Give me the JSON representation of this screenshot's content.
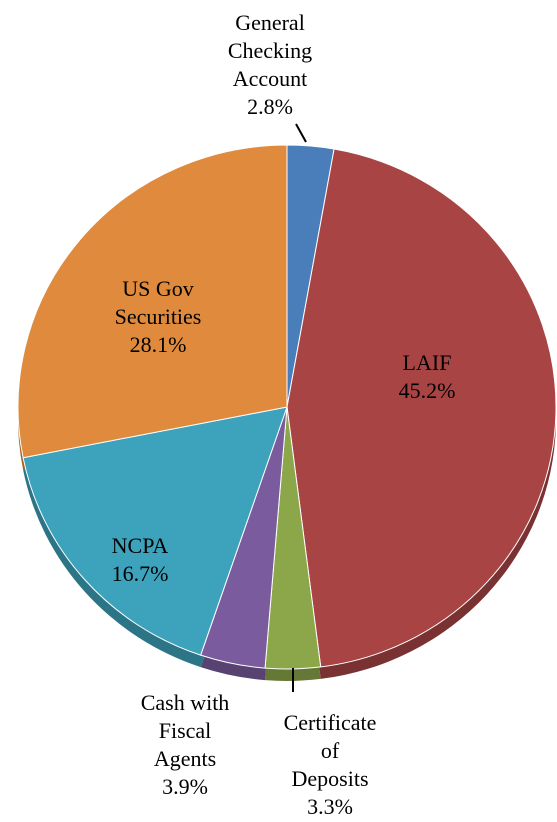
{
  "chart_data": {
    "type": "pie",
    "title": "",
    "start_angle_deg": 0,
    "direction": "clockwise",
    "slices": [
      {
        "label_lines": [
          "General",
          "Checking",
          "Account"
        ],
        "value": 2.8,
        "value_text": "2.8%",
        "color": "#4A7EBB"
      },
      {
        "label_lines": [
          "LAIF"
        ],
        "value": 45.2,
        "value_text": "45.2%",
        "color": "#A94444"
      },
      {
        "label_lines": [
          "Certificate",
          "of",
          "Deposits"
        ],
        "value": 3.3,
        "value_text": "3.3%",
        "color": "#8CA64A"
      },
      {
        "label_lines": [
          "Cash with",
          "Fiscal",
          "Agents"
        ],
        "value": 3.9,
        "value_text": "3.9%",
        "color": "#7A5B9E"
      },
      {
        "label_lines": [
          "NCPA"
        ],
        "value": 16.7,
        "value_text": "16.7%",
        "color": "#3DA3BC"
      },
      {
        "label_lines": [
          "US Gov",
          "Securities"
        ],
        "value": 28.1,
        "value_text": "28.1%",
        "color": "#E08A3E"
      }
    ]
  }
}
